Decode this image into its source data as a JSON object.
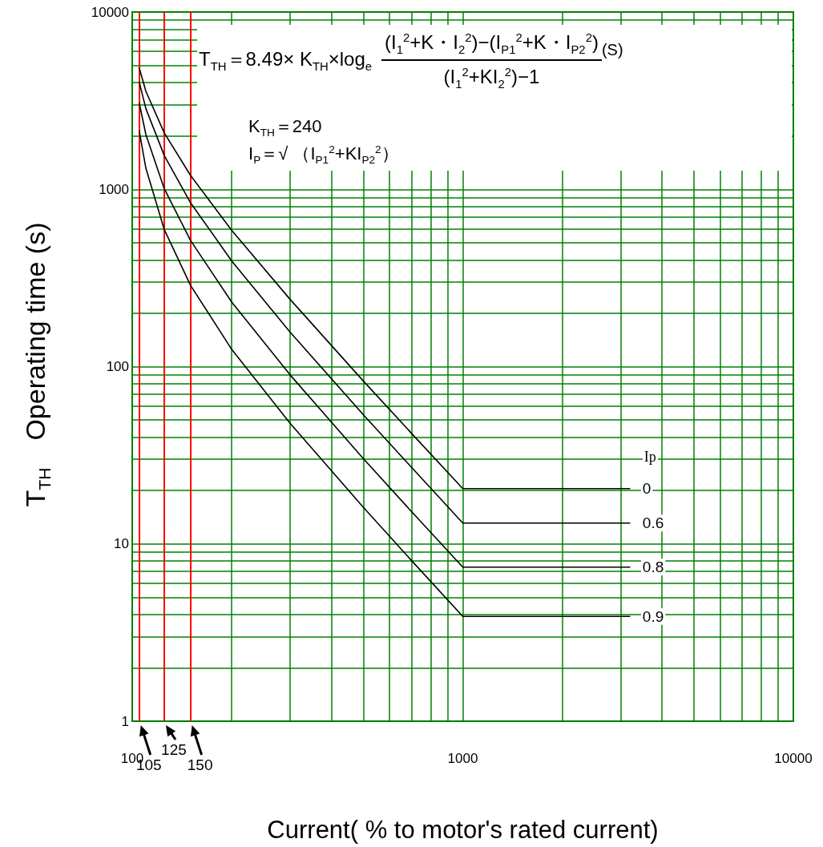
{
  "chart_data": {
    "type": "line",
    "xlabel": "Current( % to motor's rated current)",
    "ylabel": "T$_{TH}$　Operating time (s)",
    "legend_title": "Ip",
    "annotations": [
      "T$_{TH}$＝8.49× K$_{TH}$×log$_{e}$",
      "(I$_{1}$$^{2}$+K・I$_{2}$$^{2}$)−(I$_{P1}$$^{2}$+K・I$_{P2}$$^{2}$)",
      "(I$_{1}$$^{2}$+KI$_{2}$$^{2}$)−1",
      "(S)",
      "K$_{TH}$＝240",
      "I$_{P}$＝√ （I$_{P1}$$^{2}$+KI$_{P2}$$^{2}$）"
    ],
    "log": "xy",
    "grid": true,
    "legend": false,
    "marker": "none",
    "line_style": "solid",
    "xlim": [
      100,
      10000
    ],
    "xticks": [
      100,
      {
        "value": 200,
        "label": null
      },
      {
        "value": 300,
        "label": null
      },
      {
        "value": 400,
        "label": null
      },
      {
        "value": 500,
        "label": null
      },
      {
        "value": 600,
        "label": null
      },
      {
        "value": 700,
        "label": null
      },
      {
        "value": 800,
        "label": null
      },
      {
        "value": 900,
        "label": null
      },
      1000,
      {
        "value": 2000,
        "label": null
      },
      {
        "value": 3000,
        "label": null
      },
      {
        "value": 4000,
        "label": null
      },
      {
        "value": 5000,
        "label": null
      },
      {
        "value": 6000,
        "label": null
      },
      {
        "value": 7000,
        "label": null
      },
      {
        "value": 8000,
        "label": null
      },
      {
        "value": 9000,
        "label": null
      },
      10000
    ],
    "ylim": [
      1,
      10000
    ],
    "yticks": [
      1,
      {
        "value": 2,
        "label": null
      },
      {
        "value": 3,
        "label": null
      },
      {
        "value": 4,
        "label": null
      },
      {
        "value": 5,
        "label": null
      },
      {
        "value": 6,
        "label": null
      },
      {
        "value": 7,
        "label": null
      },
      {
        "value": 8,
        "label": null
      },
      {
        "value": 9,
        "label": null
      },
      10,
      {
        "value": 20,
        "label": null
      },
      {
        "value": 30,
        "label": null
      },
      {
        "value": 40,
        "label": null
      },
      {
        "value": 50,
        "label": null
      },
      {
        "value": 60,
        "label": null
      },
      {
        "value": 70,
        "label": null
      },
      {
        "value": 80,
        "label": null
      },
      {
        "value": 90,
        "label": null
      },
      100,
      {
        "value": 200,
        "label": null
      },
      {
        "value": 300,
        "label": null
      },
      {
        "value": 400,
        "label": null
      },
      {
        "value": 500,
        "label": null
      },
      {
        "value": 600,
        "label": null
      },
      {
        "value": 700,
        "label": null
      },
      {
        "value": 800,
        "label": null
      },
      {
        "value": 900,
        "label": null
      },
      1000,
      {
        "value": 2000,
        "label": null
      },
      {
        "value": 3000,
        "label": null
      },
      {
        "value": 4000,
        "label": null
      },
      {
        "value": 5000,
        "label": null
      },
      {
        "value": 6000,
        "label": null
      },
      {
        "value": 7000,
        "label": null
      },
      {
        "value": 8000,
        "label": null
      },
      {
        "value": 9000,
        "label": null
      },
      10000
    ],
    "series": [
      {
        "name": "0",
        "color": "#000000",
        "x": [
          105,
          110,
          125,
          150,
          200,
          300,
          500,
          700,
          1000,
          3200
        ],
        "values": [
          4840,
          3570,
          2080,
          1200,
          586,
          240,
          83,
          42,
          20.5,
          20.5
        ]
      },
      {
        "name": "0.6",
        "color": "#000000",
        "x": [
          105,
          110,
          125,
          150,
          200,
          300,
          500,
          700,
          1000,
          3200
        ],
        "values": [
          4030,
          2850,
          1550,
          842,
          394,
          157,
          53.6,
          27,
          13.1,
          13.1
        ]
      },
      {
        "name": "0.8",
        "color": "#000000",
        "x": [
          105,
          110,
          125,
          150,
          200,
          300,
          500,
          700,
          1000,
          3200
        ],
        "values": [
          3070,
          2035,
          1008,
          516,
          231,
          90,
          30.3,
          15.2,
          7.4,
          7.4
        ]
      },
      {
        "name": "0.9",
        "color": "#000000",
        "x": [
          105,
          110,
          125,
          150,
          200,
          300,
          500,
          700,
          1000,
          3200
        ],
        "values": [
          2137,
          1313,
          593,
          288,
          125,
          48,
          16.1,
          8.05,
          3.9,
          3.9
        ]
      }
    ],
    "ref_lines": [
      {
        "axis": "x",
        "value": 105,
        "label": "105",
        "color": "#ff0000",
        "line_style": "solid"
      },
      {
        "axis": "x",
        "value": 125,
        "label": "125",
        "color": "#ff0000",
        "line_style": "solid"
      },
      {
        "axis": "x",
        "value": 150,
        "label": "150",
        "color": "#ff0000",
        "line_style": "solid"
      }
    ]
  }
}
